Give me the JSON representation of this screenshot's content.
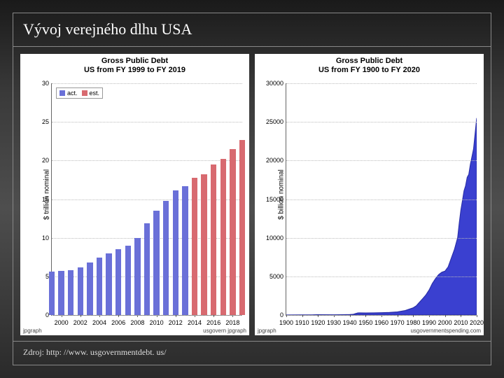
{
  "slide": {
    "title": "Vývoj verejného dlhu USA",
    "source": "Zdroj: http: //www. usgovernmentdebt. us/"
  },
  "chart_left": {
    "type": "bar",
    "title": "Gross Public Debt\nUS from FY 1999 to FY 2019",
    "ylabel": "$ trillion nominal",
    "ylim": [
      0,
      30
    ],
    "ytick_step": 5,
    "xmin": 1999,
    "xmax": 2019,
    "xtick_step": 2,
    "xtick_start": 2000,
    "categories": [
      1999,
      2000,
      2001,
      2002,
      2003,
      2004,
      2005,
      2006,
      2007,
      2008,
      2009,
      2010,
      2011,
      2012,
      2013,
      2014,
      2015,
      2016,
      2017,
      2018,
      2019
    ],
    "values": [
      5.6,
      5.7,
      5.8,
      6.2,
      6.8,
      7.4,
      8.0,
      8.5,
      9.0,
      10.0,
      11.9,
      13.5,
      14.8,
      16.1,
      16.7,
      17.8,
      18.2,
      19.5,
      20.2,
      21.5,
      22.7
    ],
    "series": [
      "act",
      "act",
      "act",
      "act",
      "act",
      "act",
      "act",
      "act",
      "act",
      "act",
      "act",
      "act",
      "act",
      "act",
      "act",
      "est",
      "est",
      "est",
      "est",
      "est",
      "est"
    ],
    "colors": {
      "act": "#6a70d8",
      "est": "#d86a70"
    },
    "bar_width": 0.62,
    "background_color": "#ffffff",
    "grid_color": "#bbbbbb",
    "title_fontsize": 11,
    "label_fontsize": 10,
    "tick_fontsize": 9,
    "legend": {
      "items": [
        {
          "key": "act",
          "label": "act."
        },
        {
          "key": "est",
          "label": "est."
        }
      ]
    },
    "watermark_left": "jpgraph",
    "watermark_right": "usgovern jpgraph"
  },
  "chart_right": {
    "type": "area",
    "title": "Gross Public Debt\nUS from FY 1900 to FY 2020",
    "ylabel": "$ billion nominal",
    "ylim": [
      0,
      30000
    ],
    "ytick_step": 5000,
    "xmin": 1900,
    "xmax": 2020,
    "xtick_step": 10,
    "xtick_start": 1900,
    "series_points": [
      [
        1900,
        2
      ],
      [
        1910,
        3
      ],
      [
        1916,
        3
      ],
      [
        1919,
        27
      ],
      [
        1920,
        26
      ],
      [
        1930,
        16
      ],
      [
        1935,
        34
      ],
      [
        1940,
        51
      ],
      [
        1942,
        72
      ],
      [
        1945,
        260
      ],
      [
        1946,
        271
      ],
      [
        1950,
        257
      ],
      [
        1955,
        274
      ],
      [
        1960,
        290
      ],
      [
        1965,
        322
      ],
      [
        1970,
        389
      ],
      [
        1975,
        576
      ],
      [
        1980,
        930
      ],
      [
        1982,
        1197
      ],
      [
        1984,
        1663
      ],
      [
        1986,
        2125
      ],
      [
        1988,
        2602
      ],
      [
        1990,
        3233
      ],
      [
        1992,
        4065
      ],
      [
        1994,
        4693
      ],
      [
        1996,
        5225
      ],
      [
        1998,
        5526
      ],
      [
        2000,
        5674
      ],
      [
        2002,
        6228
      ],
      [
        2004,
        7379
      ],
      [
        2006,
        8507
      ],
      [
        2008,
        10025
      ],
      [
        2009,
        11910
      ],
      [
        2010,
        13562
      ],
      [
        2011,
        14790
      ],
      [
        2012,
        16066
      ],
      [
        2013,
        16738
      ],
      [
        2014,
        17824
      ],
      [
        2015,
        18200
      ],
      [
        2016,
        19500
      ],
      [
        2018,
        21500
      ],
      [
        2020,
        25500
      ]
    ],
    "fill_color": "#3a40d0",
    "stroke_color": "#2a2fa8",
    "background_color": "#ffffff",
    "grid_color": "#bbbbbb",
    "title_fontsize": 11,
    "label_fontsize": 10,
    "tick_fontsize": 9,
    "watermark_left": "jpgraph",
    "watermark_right": "usgovernmentspending.com"
  }
}
